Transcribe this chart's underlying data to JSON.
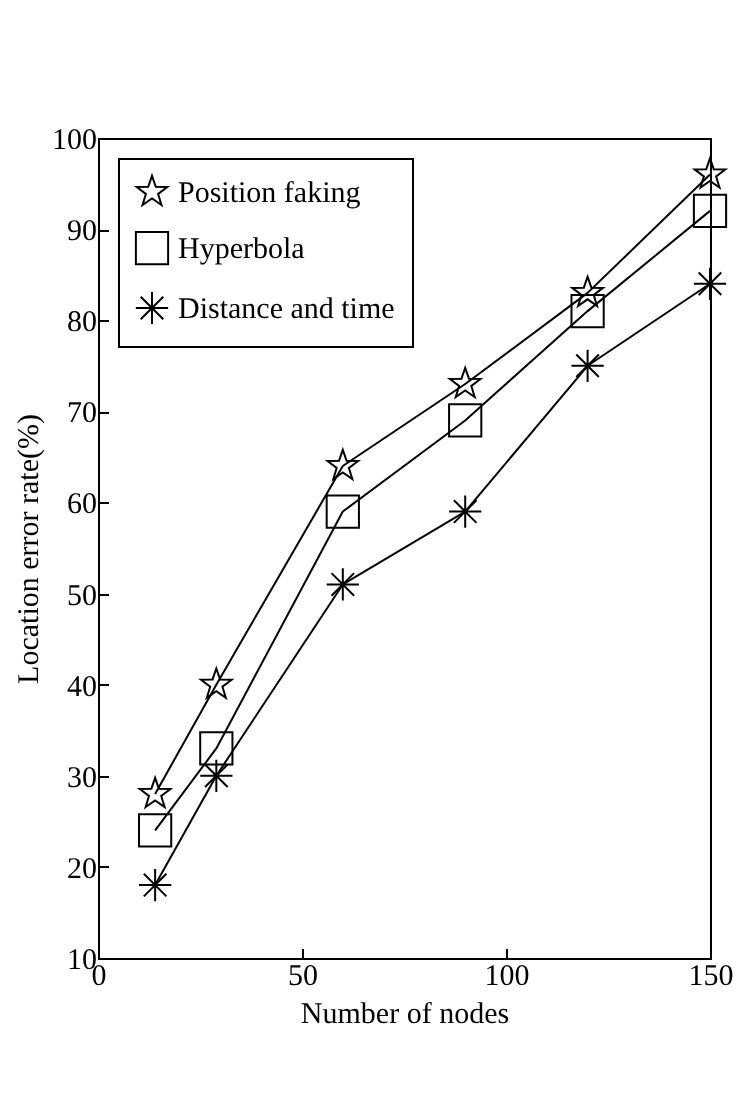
{
  "chart_data": {
    "type": "line",
    "xlabel": "Number of nodes",
    "ylabel": "Location error rate(%)",
    "x": [
      14,
      29,
      60,
      90,
      120,
      150
    ],
    "series": [
      {
        "name": "Position faking",
        "color": "#000000",
        "marker": "star",
        "values": [
          28,
          40,
          64,
          73,
          83,
          96
        ]
      },
      {
        "name": "Hyperbola",
        "color": "#000000",
        "marker": "square",
        "values": [
          24,
          33,
          59,
          69,
          81,
          92
        ]
      },
      {
        "name": "Distance and time",
        "color": "#000000",
        "marker": "cross",
        "values": [
          18,
          30,
          51,
          59,
          75,
          84
        ]
      }
    ],
    "xlim": [
      0,
      150
    ],
    "xticks": [
      0,
      50,
      100,
      150
    ],
    "ylim": [
      10,
      100
    ],
    "yticks": [
      10,
      20,
      30,
      40,
      50,
      60,
      70,
      80,
      90,
      100
    ],
    "grid": false,
    "legend": "top left",
    "line_style": "solid"
  }
}
